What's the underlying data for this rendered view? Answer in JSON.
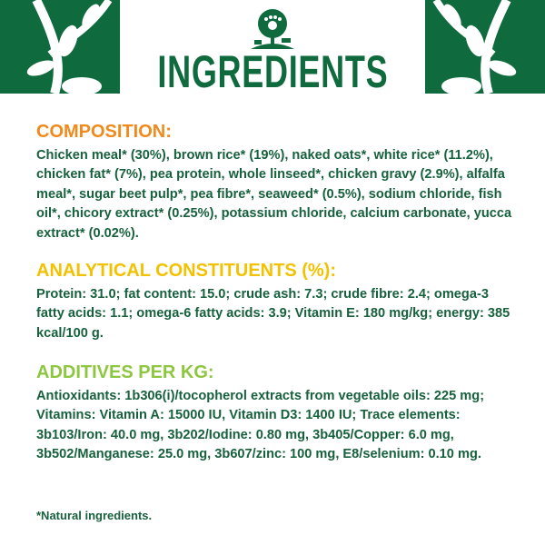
{
  "header": {
    "title": "INGREDIENTS",
    "logo": "tree-paw-logo",
    "brand_color": "#0f6a3e"
  },
  "sections": [
    {
      "heading": "COMPOSITION:",
      "color": "#f08a1c",
      "body": "Chicken meal* (30%), brown rice* (19%), naked oats*, white rice* (11.2%), chicken fat* (7%), pea protein, whole linseed*, chicken gravy (2.9%), alfalfa meal*, sugar beet pulp*, pea fibre*, seaweed* (0.5%), sodium chloride, fish oil*, chicory extract* (0.25%), potassium chloride, calcium carbonate, yucca extract* (0.02%)."
    },
    {
      "heading": "ANALYTICAL CONSTITUENTS (%):",
      "color": "#f2c200",
      "body": "Protein: 31.0; fat content: 15.0; crude ash: 7.3; crude fibre: 2.4; omega-3 fatty acids: 1.1; omega-6 fatty acids: 3.9; Vitamin E: 180 mg/kg; energy: 385 kcal/100 g."
    },
    {
      "heading": "ADDITIVES PER KG:",
      "color": "#8dc63f",
      "body": "Antioxidants: 1b306(i)/tocopherol extracts from vegetable oils: 225 mg; Vitamins: Vitamin A: 15000 IU, Vitamin D3: 1400 IU; Trace elements: 3b103/Iron: 40.0 mg, 3b202/Iodine: 0.80 mg, 3b405/Copper: 6.0 mg, 3b502/Manganese: 25.0 mg, 3b607/zinc: 100 mg, E8/selenium: 0.10 mg."
    }
  ],
  "footnote": "*Natural ingredients."
}
